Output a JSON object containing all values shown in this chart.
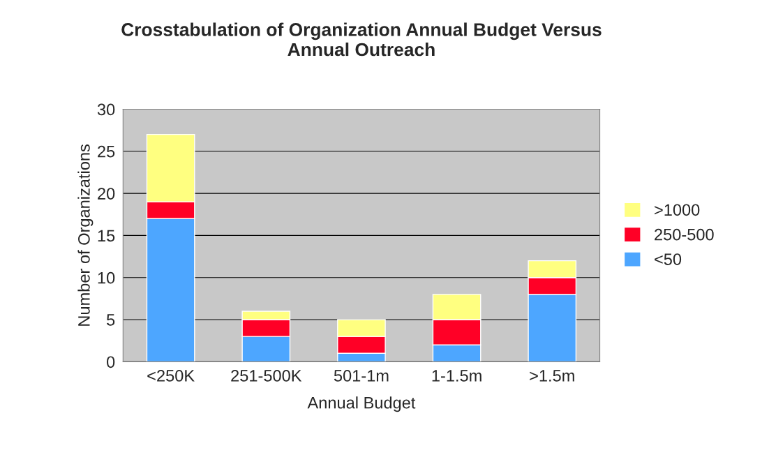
{
  "chart_data": {
    "type": "bar",
    "title": "Crosstabulation of Organization Annual Budget Versus\nAnnual Outreach",
    "xlabel": "Annual Budget",
    "ylabel": "Number of Organizations",
    "categories": [
      "<250K",
      "251-500K",
      "501-1m",
      "1-1.5m",
      ">1.5m"
    ],
    "stacked": true,
    "series": [
      {
        "name": "<50",
        "color": "#4da6ff",
        "values": [
          17,
          3,
          1,
          2,
          8
        ]
      },
      {
        "name": "250-500",
        "color": "#ff0026",
        "values": [
          2,
          2,
          2,
          3,
          2
        ]
      },
      {
        "name": ">1000",
        "color": "#ffff80",
        "values": [
          8,
          1,
          2,
          3,
          2
        ]
      }
    ],
    "ylim": [
      0,
      30
    ],
    "yticks": [
      0,
      5,
      10,
      15,
      20,
      25,
      30
    ],
    "grid": "y",
    "legend": "right"
  }
}
